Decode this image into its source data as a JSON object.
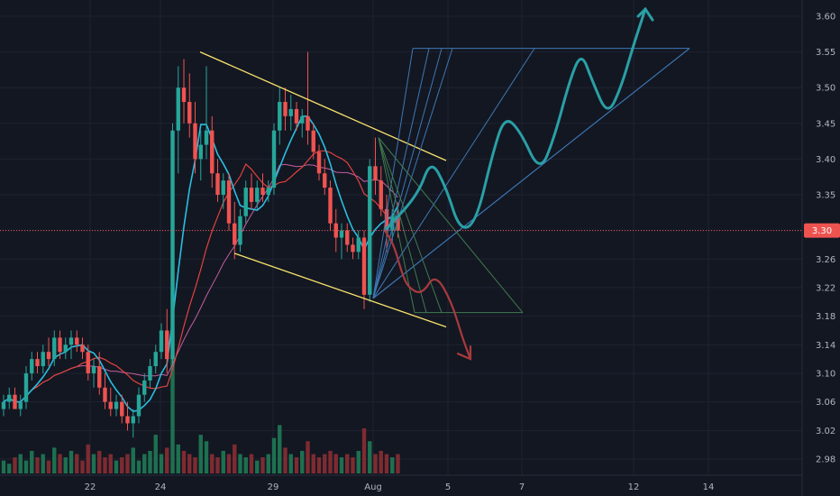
{
  "chart_data": {
    "type": "candlestick",
    "y_axis": {
      "ticks": [
        "3.60",
        "3.55",
        "3.50",
        "3.45",
        "3.40",
        "3.35",
        "3.30",
        "3.26",
        "3.22",
        "3.18",
        "3.14",
        "3.10",
        "3.06",
        "3.02",
        "2.98"
      ],
      "range": [
        2.96,
        3.62
      ]
    },
    "x_axis": {
      "ticks": [
        "22",
        "24",
        "29",
        "Aug",
        "5",
        "7",
        "12",
        "14"
      ]
    },
    "current_price": {
      "label": "3.30",
      "value": 3.3
    },
    "candles": [
      {
        "o": 3.05,
        "h": 3.07,
        "l": 3.04,
        "c": 3.06
      },
      {
        "o": 3.06,
        "h": 3.08,
        "l": 3.05,
        "c": 3.07
      },
      {
        "o": 3.07,
        "h": 3.08,
        "l": 3.05,
        "c": 3.05
      },
      {
        "o": 3.05,
        "h": 3.07,
        "l": 3.04,
        "c": 3.06
      },
      {
        "o": 3.06,
        "h": 3.11,
        "l": 3.05,
        "c": 3.1
      },
      {
        "o": 3.1,
        "h": 3.13,
        "l": 3.09,
        "c": 3.12
      },
      {
        "o": 3.12,
        "h": 3.13,
        "l": 3.1,
        "c": 3.11
      },
      {
        "o": 3.11,
        "h": 3.14,
        "l": 3.1,
        "c": 3.13
      },
      {
        "o": 3.13,
        "h": 3.15,
        "l": 3.11,
        "c": 3.12
      },
      {
        "o": 3.12,
        "h": 3.16,
        "l": 3.11,
        "c": 3.15
      },
      {
        "o": 3.15,
        "h": 3.16,
        "l": 3.12,
        "c": 3.13
      },
      {
        "o": 3.13,
        "h": 3.15,
        "l": 3.12,
        "c": 3.14
      },
      {
        "o": 3.14,
        "h": 3.16,
        "l": 3.12,
        "c": 3.15
      },
      {
        "o": 3.15,
        "h": 3.16,
        "l": 3.13,
        "c": 3.14
      },
      {
        "o": 3.14,
        "h": 3.15,
        "l": 3.12,
        "c": 3.13
      },
      {
        "o": 3.13,
        "h": 3.14,
        "l": 3.09,
        "c": 3.1
      },
      {
        "o": 3.1,
        "h": 3.12,
        "l": 3.08,
        "c": 3.11
      },
      {
        "o": 3.11,
        "h": 3.13,
        "l": 3.07,
        "c": 3.08
      },
      {
        "o": 3.08,
        "h": 3.1,
        "l": 3.05,
        "c": 3.06
      },
      {
        "o": 3.06,
        "h": 3.08,
        "l": 3.04,
        "c": 3.05
      },
      {
        "o": 3.05,
        "h": 3.07,
        "l": 3.04,
        "c": 3.06
      },
      {
        "o": 3.06,
        "h": 3.07,
        "l": 3.03,
        "c": 3.04
      },
      {
        "o": 3.04,
        "h": 3.06,
        "l": 3.02,
        "c": 3.03
      },
      {
        "o": 3.03,
        "h": 3.05,
        "l": 3.01,
        "c": 3.04
      },
      {
        "o": 3.04,
        "h": 3.08,
        "l": 3.03,
        "c": 3.07
      },
      {
        "o": 3.07,
        "h": 3.1,
        "l": 3.06,
        "c": 3.09
      },
      {
        "o": 3.09,
        "h": 3.12,
        "l": 3.08,
        "c": 3.11
      },
      {
        "o": 3.11,
        "h": 3.14,
        "l": 3.1,
        "c": 3.13
      },
      {
        "o": 3.13,
        "h": 3.17,
        "l": 3.12,
        "c": 3.16
      },
      {
        "o": 3.16,
        "h": 3.19,
        "l": 3.1,
        "c": 3.12
      },
      {
        "o": 3.12,
        "h": 3.45,
        "l": 3.11,
        "c": 3.44
      },
      {
        "o": 3.44,
        "h": 3.53,
        "l": 3.38,
        "c": 3.5
      },
      {
        "o": 3.5,
        "h": 3.54,
        "l": 3.45,
        "c": 3.48
      },
      {
        "o": 3.48,
        "h": 3.52,
        "l": 3.43,
        "c": 3.45
      },
      {
        "o": 3.45,
        "h": 3.48,
        "l": 3.38,
        "c": 3.4
      },
      {
        "o": 3.4,
        "h": 3.44,
        "l": 3.37,
        "c": 3.42
      },
      {
        "o": 3.42,
        "h": 3.53,
        "l": 3.4,
        "c": 3.44
      },
      {
        "o": 3.44,
        "h": 3.46,
        "l": 3.36,
        "c": 3.38
      },
      {
        "o": 3.38,
        "h": 3.4,
        "l": 3.34,
        "c": 3.35
      },
      {
        "o": 3.35,
        "h": 3.38,
        "l": 3.33,
        "c": 3.37
      },
      {
        "o": 3.37,
        "h": 3.38,
        "l": 3.3,
        "c": 3.31
      },
      {
        "o": 3.31,
        "h": 3.34,
        "l": 3.26,
        "c": 3.28
      },
      {
        "o": 3.28,
        "h": 3.33,
        "l": 3.27,
        "c": 3.32
      },
      {
        "o": 3.32,
        "h": 3.37,
        "l": 3.31,
        "c": 3.36
      },
      {
        "o": 3.36,
        "h": 3.38,
        "l": 3.33,
        "c": 3.34
      },
      {
        "o": 3.34,
        "h": 3.37,
        "l": 3.33,
        "c": 3.36
      },
      {
        "o": 3.36,
        "h": 3.38,
        "l": 3.34,
        "c": 3.35
      },
      {
        "o": 3.35,
        "h": 3.37,
        "l": 3.34,
        "c": 3.36
      },
      {
        "o": 3.36,
        "h": 3.45,
        "l": 3.35,
        "c": 3.44
      },
      {
        "o": 3.44,
        "h": 3.5,
        "l": 3.42,
        "c": 3.48
      },
      {
        "o": 3.48,
        "h": 3.5,
        "l": 3.44,
        "c": 3.46
      },
      {
        "o": 3.46,
        "h": 3.49,
        "l": 3.44,
        "c": 3.47
      },
      {
        "o": 3.47,
        "h": 3.48,
        "l": 3.44,
        "c": 3.45
      },
      {
        "o": 3.45,
        "h": 3.47,
        "l": 3.43,
        "c": 3.46
      },
      {
        "o": 3.46,
        "h": 3.55,
        "l": 3.42,
        "c": 3.44
      },
      {
        "o": 3.44,
        "h": 3.45,
        "l": 3.4,
        "c": 3.41
      },
      {
        "o": 3.41,
        "h": 3.42,
        "l": 3.37,
        "c": 3.38
      },
      {
        "o": 3.38,
        "h": 3.4,
        "l": 3.35,
        "c": 3.36
      },
      {
        "o": 3.36,
        "h": 3.37,
        "l": 3.3,
        "c": 3.31
      },
      {
        "o": 3.31,
        "h": 3.33,
        "l": 3.27,
        "c": 3.29
      },
      {
        "o": 3.29,
        "h": 3.31,
        "l": 3.26,
        "c": 3.3
      },
      {
        "o": 3.3,
        "h": 3.31,
        "l": 3.27,
        "c": 3.28
      },
      {
        "o": 3.28,
        "h": 3.29,
        "l": 3.26,
        "c": 3.27
      },
      {
        "o": 3.27,
        "h": 3.3,
        "l": 3.26,
        "c": 3.29
      },
      {
        "o": 3.29,
        "h": 3.3,
        "l": 3.19,
        "c": 3.21
      },
      {
        "o": 3.21,
        "h": 3.4,
        "l": 3.2,
        "c": 3.39
      },
      {
        "o": 3.39,
        "h": 3.43,
        "l": 3.35,
        "c": 3.37
      },
      {
        "o": 3.37,
        "h": 3.39,
        "l": 3.32,
        "c": 3.33
      },
      {
        "o": 3.33,
        "h": 3.35,
        "l": 3.27,
        "c": 3.3
      },
      {
        "o": 3.3,
        "h": 3.33,
        "l": 3.28,
        "c": 3.32
      },
      {
        "o": 3.32,
        "h": 3.34,
        "l": 3.29,
        "c": 3.3
      }
    ],
    "volume": [
      0.2,
      0.15,
      0.25,
      0.3,
      0.2,
      0.35,
      0.25,
      0.3,
      0.2,
      0.4,
      0.3,
      0.25,
      0.35,
      0.3,
      0.2,
      0.45,
      0.3,
      0.35,
      0.25,
      0.3,
      0.2,
      0.25,
      0.3,
      0.4,
      0.2,
      0.3,
      0.35,
      0.6,
      0.3,
      0.4,
      1.0,
      0.45,
      0.35,
      0.3,
      0.25,
      0.6,
      0.5,
      0.3,
      0.25,
      0.35,
      0.3,
      0.45,
      0.3,
      0.25,
      0.3,
      0.2,
      0.25,
      0.3,
      0.55,
      0.75,
      0.4,
      0.3,
      0.25,
      0.35,
      0.5,
      0.3,
      0.25,
      0.3,
      0.35,
      0.3,
      0.25,
      0.3,
      0.25,
      0.35,
      0.7,
      0.5,
      0.3,
      0.35,
      0.3,
      0.25,
      0.3
    ],
    "pattern_lines": [
      {
        "from": [
          190,
          3.55
        ],
        "to": [
          470,
          3.398
        ],
        "color": "#f7e26b"
      },
      {
        "from": [
          228,
          3.268
        ],
        "to": [
          470,
          3.165
        ],
        "color": "#f7e26b"
      }
    ],
    "forecast_up": [
      [
        395,
        3.3
      ],
      [
        432,
        3.35
      ],
      [
        446,
        3.4
      ],
      [
        463,
        3.36
      ],
      [
        478,
        3.3
      ],
      [
        496,
        3.31
      ],
      [
        515,
        3.41
      ],
      [
        528,
        3.46
      ],
      [
        545,
        3.44
      ],
      [
        567,
        3.38
      ],
      [
        583,
        3.43
      ],
      [
        600,
        3.51
      ],
      [
        613,
        3.55
      ],
      [
        625,
        3.51
      ],
      [
        642,
        3.46
      ],
      [
        657,
        3.5
      ],
      [
        671,
        3.56
      ],
      [
        684,
        3.61
      ]
    ],
    "forecast_down": [
      [
        395,
        3.3
      ],
      [
        405,
        3.28
      ],
      [
        414,
        3.24
      ],
      [
        421,
        3.22
      ],
      [
        436,
        3.21
      ],
      [
        451,
        3.24
      ],
      [
        469,
        3.2
      ],
      [
        481,
        3.15
      ],
      [
        490,
        3.12
      ]
    ],
    "colors": {
      "up": "#26a69a",
      "down": "#ef5350",
      "ma_fast": "#2bbde0",
      "ma_slow": "#e0433f",
      "ma_mid": "#c45fa0",
      "bg": "#131722",
      "grid": "#1f2330"
    }
  }
}
